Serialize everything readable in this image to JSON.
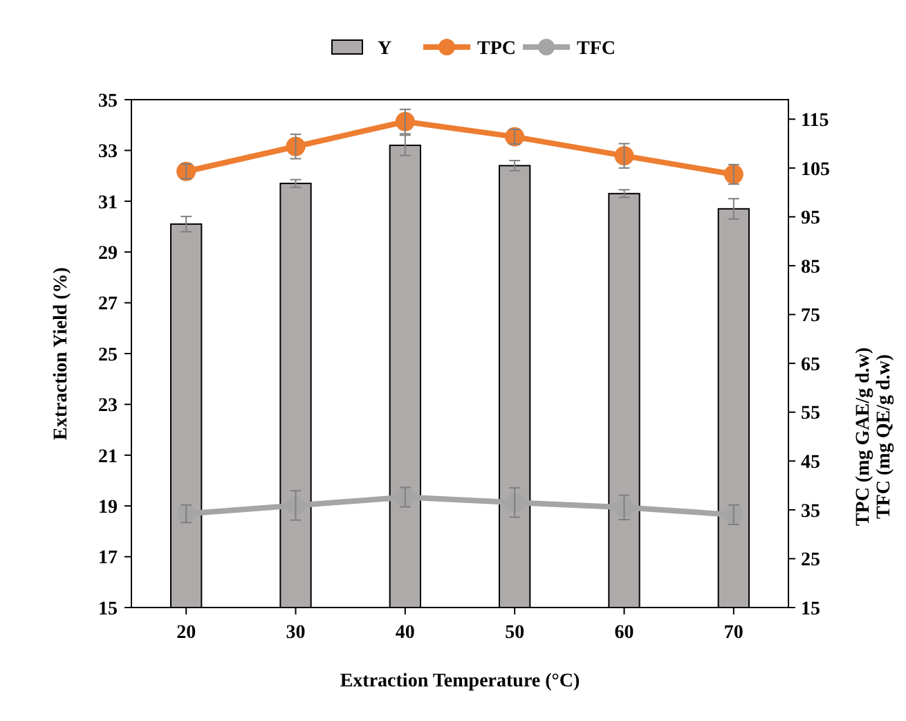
{
  "chart_data": {
    "type": "bar",
    "xlabel": "Extraction Temperature (°C)",
    "ylabel": "Extraction Yield (%)",
    "y2label": "TPC (mg GAE/g d.w)\nTFC (mg QE/g d.w)",
    "categories": [
      "20",
      "30",
      "40",
      "50",
      "60",
      "70"
    ],
    "series": [
      {
        "name": "Y",
        "color": "#aeaaaa",
        "values": [
          30.1,
          31.7,
          33.2,
          32.4,
          31.3,
          30.7
        ],
        "errors": [
          0.3,
          0.15,
          0.4,
          0.2,
          0.15,
          0.4
        ]
      },
      {
        "name": "TPC",
        "type": "line",
        "axis": "y2",
        "color": "#ed7d31",
        "marker": "circle",
        "values": [
          104.3,
          109.4,
          114.5,
          111.4,
          107.5,
          103.7
        ],
        "errors": [
          1.5,
          2.5,
          2.5,
          1.5,
          2.5,
          2
        ]
      },
      {
        "name": "TFC",
        "type": "line",
        "axis": "y2",
        "color": "#a5a5a5",
        "marker": "circle",
        "values": [
          34.2,
          35.9,
          37.6,
          36.5,
          35.5,
          34
        ],
        "errors": [
          1.8,
          3,
          2,
          3,
          2.5,
          2
        ]
      }
    ],
    "ylim": [
      15,
      35
    ],
    "yticks": [
      15,
      17,
      19,
      21,
      23,
      25,
      27,
      29,
      31,
      33,
      35
    ],
    "y2lim": [
      15,
      119
    ],
    "y2ticks": [
      15,
      25,
      35,
      45,
      55,
      65,
      75,
      85,
      95,
      105,
      115
    ],
    "grid": false,
    "legend": "top"
  }
}
